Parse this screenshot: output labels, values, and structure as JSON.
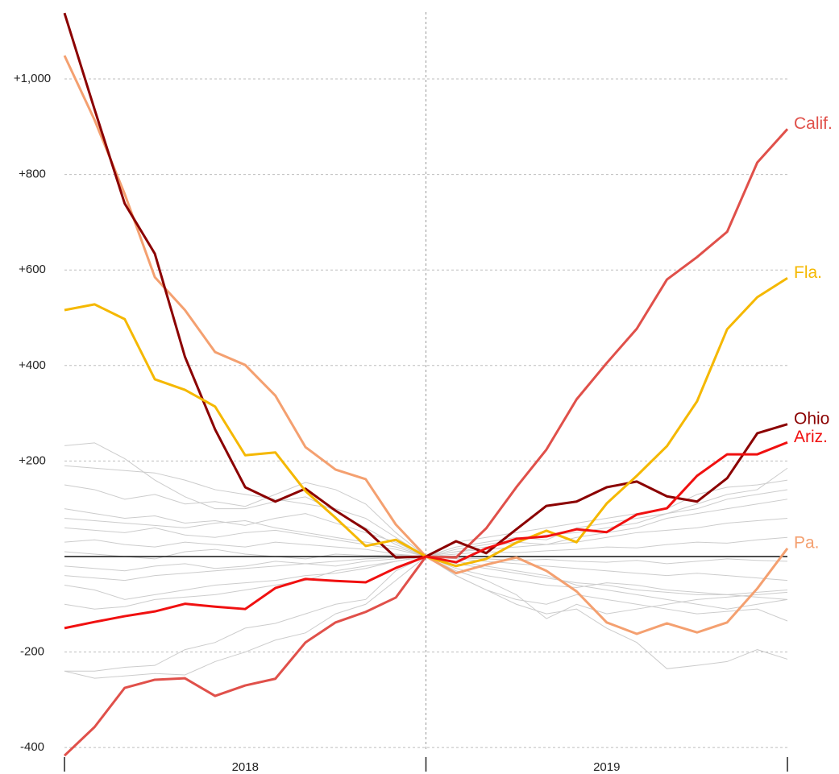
{
  "chart_data": {
    "type": "line",
    "categories": [
      null,
      null,
      null,
      null,
      null,
      null,
      null,
      null,
      null,
      null,
      null,
      null,
      null,
      null,
      null,
      null,
      null,
      null,
      null,
      null,
      null,
      null,
      null,
      null,
      null
    ],
    "period_labels": [
      "2018",
      "2019"
    ],
    "ylim": [
      -420,
      1140
    ],
    "yticks": [
      -400,
      -200,
      {
        "value": 200,
        "label": "+200"
      },
      {
        "value": 400,
        "label": "+400"
      },
      {
        "value": 600,
        "label": "+600"
      },
      {
        "value": 800,
        "label": "+800"
      },
      {
        "value": 1000,
        "label": "+1,000"
      }
    ],
    "grid": true,
    "other_color": "#cccccc",
    "other_series": [
      {
        "values": [
          232,
          238,
          205,
          160,
          125,
          100,
          100,
          115,
          125,
          95,
          60,
          25,
          0,
          -25,
          -40,
          -50,
          -60,
          -65,
          -55,
          -60,
          -70,
          -75,
          -80,
          -85,
          -90
        ]
      },
      {
        "values": [
          -240,
          -240,
          -232,
          -228,
          -195,
          -180,
          -150,
          -140,
          -120,
          -100,
          -90,
          -30,
          0,
          -40,
          -70,
          -100,
          -120,
          -110,
          -150,
          -180,
          -235,
          -228,
          -220,
          -195,
          -215
        ]
      },
      {
        "values": [
          -240,
          -255,
          -250,
          -245,
          -248,
          -220,
          -200,
          -175,
          -160,
          -120,
          -100,
          -50,
          0,
          10,
          20,
          30,
          25,
          40,
          50,
          60,
          80,
          90,
          100,
          110,
          120
        ]
      },
      {
        "values": [
          150,
          140,
          120,
          130,
          110,
          115,
          105,
          130,
          155,
          140,
          110,
          50,
          0,
          20,
          30,
          40,
          35,
          60,
          70,
          80,
          90,
          110,
          130,
          140,
          185
        ]
      },
      {
        "values": [
          100,
          90,
          80,
          85,
          70,
          75,
          65,
          80,
          90,
          70,
          50,
          30,
          0,
          -10,
          -20,
          -30,
          -40,
          -60,
          -70,
          -80,
          -90,
          -100,
          -110,
          -100,
          -90
        ]
      },
      {
        "values": [
          60,
          55,
          50,
          60,
          45,
          40,
          50,
          55,
          45,
          35,
          25,
          15,
          0,
          10,
          15,
          20,
          25,
          30,
          40,
          50,
          55,
          60,
          70,
          75,
          80
        ]
      },
      {
        "values": [
          30,
          35,
          25,
          20,
          30,
          25,
          20,
          30,
          25,
          20,
          15,
          5,
          0,
          -5,
          -10,
          -15,
          -20,
          -25,
          -30,
          -35,
          -40,
          -35,
          -40,
          -45,
          -50
        ]
      },
      {
        "values": [
          -20,
          -25,
          -30,
          -20,
          -15,
          -25,
          -20,
          -10,
          -15,
          -10,
          -5,
          -2,
          0,
          5,
          10,
          8,
          12,
          15,
          20,
          18,
          25,
          30,
          28,
          35,
          40
        ]
      },
      {
        "values": [
          -60,
          -70,
          -90,
          -80,
          -70,
          -60,
          -55,
          -50,
          -40,
          -35,
          -25,
          -10,
          0,
          -40,
          -70,
          -90,
          -100,
          -80,
          -90,
          -100,
          -110,
          -120,
          -115,
          -110,
          -135
        ]
      },
      {
        "values": [
          -100,
          -110,
          -105,
          -90,
          -85,
          -80,
          -70,
          -60,
          -50,
          -30,
          -20,
          -10,
          0,
          -30,
          -50,
          -80,
          -130,
          -100,
          -120,
          -110,
          -100,
          -90,
          -85,
          -80,
          -75
        ]
      },
      {
        "values": [
          80,
          75,
          70,
          65,
          60,
          70,
          75,
          60,
          50,
          40,
          30,
          20,
          0,
          15,
          25,
          35,
          45,
          50,
          60,
          70,
          90,
          100,
          120,
          130,
          140
        ]
      },
      {
        "values": [
          10,
          5,
          0,
          -5,
          10,
          15,
          5,
          0,
          -5,
          5,
          2,
          3,
          0,
          -3,
          -5,
          -8,
          -6,
          -10,
          -12,
          -8,
          -15,
          -10,
          -5,
          -8,
          -10
        ]
      },
      {
        "values": [
          190,
          185,
          180,
          175,
          160,
          140,
          130,
          120,
          110,
          100,
          80,
          40,
          0,
          30,
          40,
          50,
          60,
          70,
          80,
          90,
          100,
          130,
          145,
          150,
          160
        ]
      },
      {
        "values": [
          -40,
          -45,
          -50,
          -40,
          -35,
          -30,
          -25,
          -20,
          -15,
          -20,
          -10,
          -5,
          0,
          -15,
          -25,
          -35,
          -45,
          -55,
          -60,
          -70,
          -75,
          -80,
          -80,
          -75,
          -70
        ]
      }
    ],
    "series": [
      {
        "name": "Calif.",
        "color": "#e0504a",
        "values": [
          -417,
          -357,
          -275,
          -258,
          -255,
          -292,
          -270,
          -256,
          -180,
          -138,
          -116,
          -86,
          0,
          -2,
          59,
          145,
          224,
          329,
          405,
          477,
          580,
          627,
          680,
          825,
          895
        ]
      },
      {
        "name": "Pa.",
        "color": "#f4a070",
        "values": [
          1049,
          914,
          759,
          585,
          516,
          428,
          401,
          337,
          229,
          182,
          162,
          67,
          0,
          -35,
          -17,
          -2,
          -30,
          -73,
          -138,
          -162,
          -140,
          -159,
          -138,
          -67,
          17
        ]
      },
      {
        "name": "Ohio",
        "color": "#8b0000",
        "values": [
          1138,
          936,
          739,
          634,
          418,
          266,
          145,
          115,
          142,
          96,
          56,
          -2,
          0,
          32,
          7,
          57,
          106,
          115,
          145,
          157,
          126,
          115,
          164,
          258,
          277
        ]
      },
      {
        "name": "Fla.",
        "color": "#f5b800",
        "values": [
          516,
          528,
          497,
          371,
          349,
          314,
          212,
          218,
          137,
          81,
          22,
          35,
          0,
          -20,
          -5,
          29,
          54,
          30,
          111,
          169,
          231,
          325,
          476,
          543,
          583
        ]
      },
      {
        "name": "Ariz.",
        "color": "#f01010",
        "values": [
          -150,
          -137,
          -125,
          -115,
          -99,
          -105,
          -110,
          -66,
          -47,
          -51,
          -54,
          -24,
          0,
          -12,
          17,
          37,
          42,
          57,
          51,
          88,
          101,
          169,
          214,
          214,
          239
        ]
      }
    ]
  }
}
